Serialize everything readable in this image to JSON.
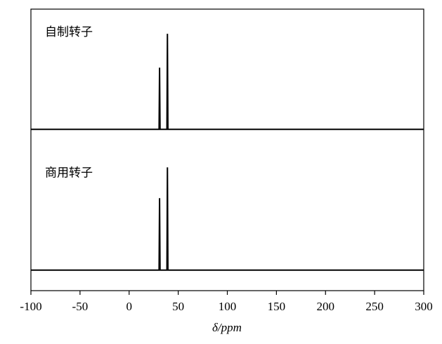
{
  "chart_data": {
    "type": "line",
    "x_label": "δ/ppm",
    "x": [
      -100,
      30.5,
      31,
      31.5,
      38.5,
      39,
      39.5,
      300
    ],
    "series": [
      {
        "name": "自制转子",
        "color": "#000000",
        "values": [
          0,
          0,
          60,
          0,
          0,
          93,
          0,
          0
        ]
      },
      {
        "name": "商用转子",
        "color": "#000000",
        "values": [
          0,
          0,
          70,
          0,
          0,
          100,
          0,
          0
        ]
      }
    ],
    "xlim": [
      -100,
      300
    ],
    "xticks": [
      -100,
      -50,
      0,
      50,
      100,
      150,
      200,
      250,
      300
    ],
    "ylim": [
      -20,
      117
    ]
  }
}
